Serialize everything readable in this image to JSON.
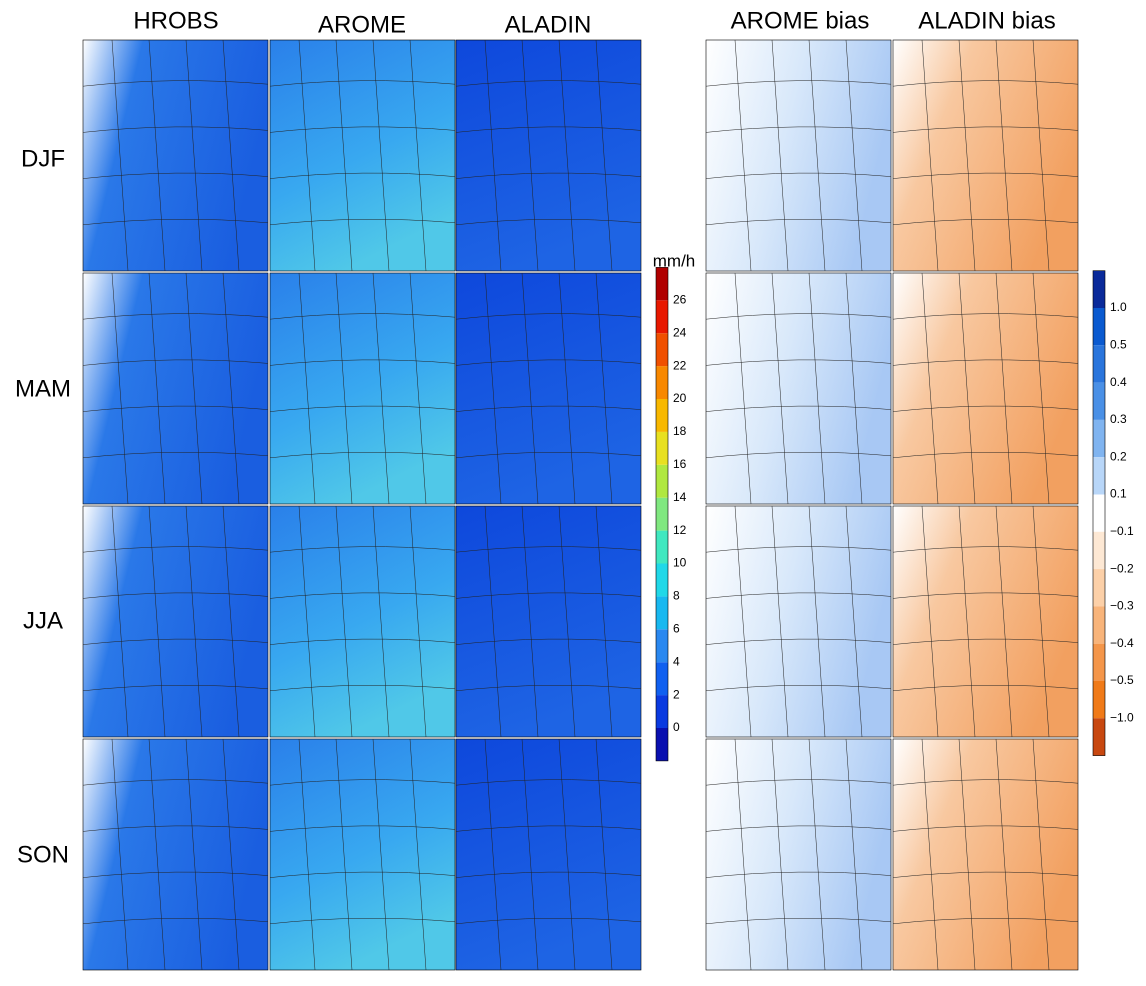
{
  "columns": [
    "HROBS",
    "AROME",
    "ALADIN",
    "AROME bias",
    "ALADIN bias"
  ],
  "rows": [
    "DJF",
    "MAM",
    "JJA",
    "SON"
  ],
  "colorbar_main": {
    "unit": "mm/h",
    "ticks": [
      "0",
      "2",
      "4",
      "6",
      "8",
      "10",
      "12",
      "14",
      "16",
      "18",
      "20",
      "22",
      "24",
      "26"
    ],
    "colors": [
      "#0a10b0",
      "#0a3ae0",
      "#1060f0",
      "#2a88f0",
      "#18b8f0",
      "#20d8e8",
      "#40e8c0",
      "#80e880",
      "#b0e840",
      "#e8e020",
      "#f8b800",
      "#f88800",
      "#f05000",
      "#e81800",
      "#b00000"
    ]
  },
  "colorbar_bias": {
    "ticks": [
      "1.0",
      "0.5",
      "0.4",
      "0.3",
      "0.2",
      "0.1",
      "−0.1",
      "−0.2",
      "−0.3",
      "−0.4",
      "−0.5",
      "−1.0"
    ],
    "colors": [
      "#0a2a9a",
      "#0a5ad0",
      "#2a75dc",
      "#4a90e6",
      "#80b4f0",
      "#b8d6f8",
      "#ffffff",
      "#fde8d4",
      "#fcd0a8",
      "#f8b47a",
      "#f4964a",
      "#f07a18",
      "#c84810"
    ]
  }
}
